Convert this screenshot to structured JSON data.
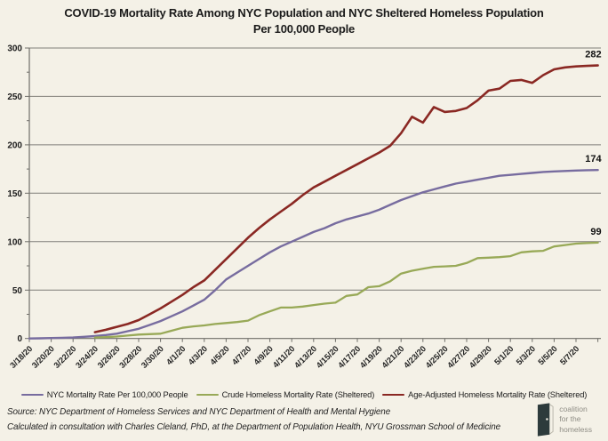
{
  "title": {
    "line1": "COVID-19 Mortality Rate Among NYC Population and NYC Sheltered Homeless Population",
    "line2": "Per 100,000 People"
  },
  "source": {
    "line1": "Source: NYC Department of Homeless Services and NYC Department of Health and Mental Hygiene",
    "line2": "Calculated in consultation with Charles Cleland, PhD, at the Department of Population Health, NYU Grossman School of Medicine"
  },
  "logo": {
    "line1": "coalition",
    "line2": "for the",
    "line3": "homeless"
  },
  "colors": {
    "background": "#f4f1e7",
    "gridline": "#7f7e79",
    "axis": "#6f6e69",
    "nyc_line": "#776c9f",
    "crude_homeless_line": "#98a957",
    "age_adjusted_line": "#8a2823",
    "logo_door": "#2d3b3c",
    "logo_text": "#8f8d85"
  },
  "chart_data": {
    "type": "line",
    "title": "COVID-19 Mortality Rate Among NYC Population and NYC Sheltered Homeless Population Per 100,000 People",
    "xlabel": "",
    "ylabel": "",
    "ylim": [
      0,
      300
    ],
    "y_ticks": [
      0,
      50,
      100,
      150,
      200,
      250,
      300
    ],
    "grid": "horizontal",
    "legend_position": "bottom",
    "x_unit": "day",
    "x_tick_every_days": 2,
    "x_tick_labels": [
      "3/18/20",
      "3/20/20",
      "3/22/20",
      "3/24/20",
      "3/26/20",
      "3/28/20",
      "3/30/20",
      "4/1/20",
      "4/3/20",
      "4/5/20",
      "4/7/20",
      "4/9/20",
      "4/11/20",
      "4/13/20",
      "4/15/20",
      "4/17/20",
      "4/19/20",
      "4/21/20",
      "4/23/20",
      "4/25/20",
      "4/27/20",
      "4/29/20",
      "5/1/20",
      "5/3/20",
      "5/5/20",
      "5/7/20"
    ],
    "series": [
      {
        "name": "NYC Mortality Rate Per 100,000 People",
        "color": "#776c9f",
        "width": 2.4,
        "start_day": 0,
        "end_label": "174",
        "values": [
          0,
          0.2,
          0.5,
          0.7,
          1,
          1.7,
          2.5,
          3.6,
          5,
          7.5,
          10,
          14,
          18,
          23,
          28,
          34,
          40,
          50,
          61,
          68,
          75,
          82,
          89,
          95,
          100,
          105,
          110,
          114,
          119,
          123,
          126,
          129,
          133,
          138,
          143,
          147,
          151,
          154,
          157,
          160,
          162,
          164,
          166,
          168,
          169,
          170,
          171,
          172,
          172.5,
          173,
          173.5,
          173.8,
          174
        ]
      },
      {
        "name": "Crude Homeless Mortality Rate (Sheltered)",
        "color": "#98a957",
        "width": 2.3,
        "start_day": 6,
        "end_label": "99",
        "values": [
          1,
          1.5,
          2,
          3,
          4,
          4.5,
          5,
          8,
          11,
          12.5,
          13.5,
          15,
          16,
          17,
          18.5,
          24,
          28,
          32,
          32,
          33,
          34.5,
          36,
          37,
          44,
          45.5,
          53,
          54,
          59,
          67,
          70,
          72,
          74,
          74.5,
          75,
          78,
          83,
          83.5,
          84,
          85,
          89,
          90,
          90.5,
          95,
          96.5,
          98,
          98.5,
          99
        ]
      },
      {
        "name": "Age-Adjusted Homeless Mortality Rate (Sheltered)",
        "color": "#8a2823",
        "width": 2.6,
        "start_day": 6,
        "end_label": "282",
        "values": [
          6.5,
          9,
          12,
          15,
          19,
          25,
          31,
          38,
          45,
          53,
          60,
          71,
          82,
          93,
          104,
          114,
          123,
          131,
          139,
          148,
          156,
          162,
          168,
          174,
          180,
          186,
          192,
          199,
          212,
          229,
          223,
          239,
          234,
          235,
          238,
          246,
          256,
          258,
          266,
          267,
          264,
          272,
          278,
          280,
          281,
          281.5,
          282
        ]
      }
    ]
  }
}
